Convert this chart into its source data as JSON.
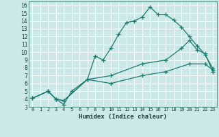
{
  "xlabel": "Humidex (Indice chaleur)",
  "bg_color": "#cce8e8",
  "line_color": "#1a7a6e",
  "grid_color": "#ffffff",
  "xlim": [
    -0.5,
    23.5
  ],
  "ylim": [
    3,
    16.5
  ],
  "xticks": [
    0,
    1,
    2,
    3,
    4,
    5,
    6,
    7,
    8,
    9,
    10,
    11,
    12,
    13,
    14,
    15,
    16,
    17,
    18,
    19,
    20,
    21,
    22,
    23
  ],
  "yticks": [
    3,
    4,
    5,
    6,
    7,
    8,
    9,
    10,
    11,
    12,
    13,
    14,
    15,
    16
  ],
  "lines": [
    {
      "x": [
        0,
        2,
        3,
        4,
        5,
        7,
        8,
        9,
        10,
        11,
        12,
        13,
        14,
        15,
        16,
        17,
        18,
        19,
        20,
        21,
        22,
        23
      ],
      "y": [
        4.1,
        5.0,
        4.0,
        3.3,
        5.0,
        6.5,
        9.5,
        9.0,
        10.5,
        12.3,
        13.8,
        14.0,
        14.5,
        15.8,
        14.8,
        14.8,
        14.1,
        13.2,
        12.0,
        10.8,
        9.7,
        7.9
      ]
    },
    {
      "x": [
        0,
        2,
        3,
        4,
        7,
        10,
        14,
        17,
        19,
        20,
        21,
        22,
        23
      ],
      "y": [
        4.1,
        5.0,
        4.0,
        3.8,
        6.5,
        7.0,
        8.5,
        9.0,
        10.5,
        11.5,
        10.3,
        9.8,
        7.5
      ]
    },
    {
      "x": [
        0,
        2,
        3,
        4,
        7,
        10,
        14,
        17,
        20,
        22,
        23
      ],
      "y": [
        4.1,
        5.0,
        4.0,
        3.8,
        6.5,
        6.0,
        7.0,
        7.5,
        8.5,
        8.5,
        7.7
      ]
    }
  ]
}
